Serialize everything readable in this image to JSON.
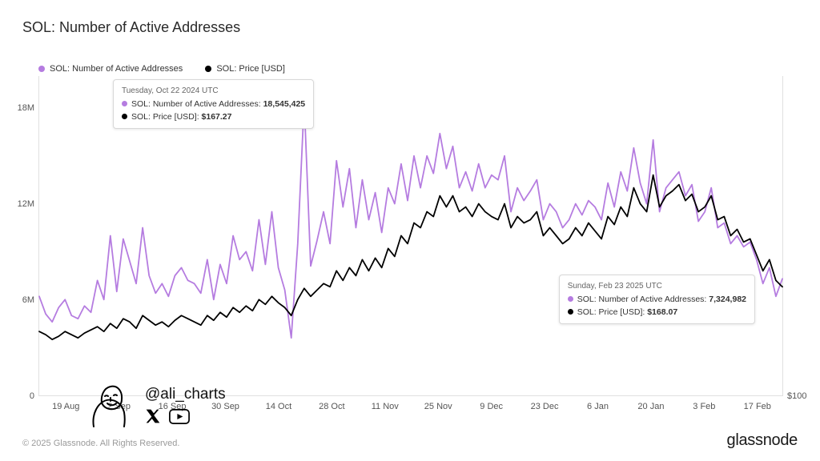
{
  "title": "SOL: Number of Active Addresses",
  "legend": {
    "series1": {
      "label": "SOL: Number of Active Addresses",
      "color": "#b57ce0"
    },
    "series2": {
      "label": "SOL: Price [USD]",
      "color": "#000000"
    }
  },
  "chart": {
    "type": "line",
    "background_color": "#ffffff",
    "border_color": "#e0e0e0",
    "y_left": {
      "min": 0,
      "max": 20000000,
      "ticks": [
        0,
        6000000,
        12000000,
        18000000
      ],
      "tick_labels": [
        "0",
        "6M",
        "12M",
        "18M"
      ]
    },
    "y_right": {
      "min": 100,
      "max": 300,
      "ticks": [
        100
      ],
      "tick_labels": [
        "$100"
      ]
    },
    "x_ticks": [
      "19 Aug",
      "2 Sep",
      "16 Sep",
      "30 Sep",
      "14 Oct",
      "28 Oct",
      "11 Nov",
      "25 Nov",
      "9 Dec",
      "23 Dec",
      "6 Jan",
      "20 Jan",
      "3 Feb",
      "17 Feb"
    ],
    "line_width": 1.8,
    "addresses_color": "#b57ce0",
    "price_color": "#000000",
    "addresses": [
      6.2,
      5.1,
      4.6,
      5.5,
      6.0,
      5.0,
      4.8,
      5.6,
      5.2,
      7.2,
      6.0,
      10.0,
      6.5,
      9.8,
      8.4,
      7.0,
      10.5,
      7.5,
      6.4,
      7.0,
      6.2,
      7.5,
      8.0,
      7.2,
      7.0,
      6.4,
      8.5,
      6.0,
      8.2,
      7.0,
      10.0,
      8.5,
      9.0,
      7.8,
      11.0,
      8.2,
      11.5,
      8.0,
      6.6,
      3.6,
      9.5,
      18.4,
      8.1,
      9.7,
      11.5,
      9.5,
      14.7,
      11.8,
      14.2,
      10.5,
      13.5,
      11.0,
      12.7,
      10.2,
      13.0,
      12.0,
      14.5,
      12.2,
      15.0,
      13.0,
      15.0,
      13.9,
      16.4,
      14.2,
      15.6,
      13.0,
      14.0,
      12.8,
      14.5,
      13.0,
      13.8,
      13.5,
      15.0,
      11.5,
      13.0,
      12.2,
      12.8,
      13.5,
      11.0,
      12.0,
      11.5,
      10.5,
      11.0,
      12.0,
      11.3,
      12.2,
      11.8,
      11.0,
      13.3,
      11.8,
      14.0,
      12.8,
      15.5,
      13.3,
      12.0,
      16.0,
      11.5,
      13.0,
      13.5,
      14.0,
      12.5,
      13.2,
      10.9,
      11.5,
      13.0,
      10.5,
      10.8,
      9.5,
      10.0,
      9.3,
      9.6,
      8.5,
      7.0,
      8.0,
      6.2,
      7.3
    ],
    "price_usd": [
      140,
      138,
      135,
      137,
      140,
      138,
      136,
      139,
      141,
      143,
      140,
      145,
      142,
      148,
      146,
      142,
      150,
      147,
      144,
      146,
      143,
      147,
      150,
      148,
      146,
      144,
      150,
      147,
      152,
      149,
      155,
      152,
      156,
      153,
      160,
      157,
      162,
      158,
      155,
      150,
      160,
      167,
      162,
      166,
      170,
      168,
      178,
      172,
      180,
      175,
      185,
      178,
      186,
      180,
      192,
      187,
      200,
      195,
      208,
      205,
      215,
      212,
      225,
      218,
      225,
      215,
      218,
      212,
      220,
      215,
      212,
      210,
      220,
      205,
      212,
      208,
      210,
      215,
      200,
      205,
      200,
      195,
      198,
      205,
      200,
      208,
      203,
      198,
      212,
      207,
      218,
      212,
      230,
      220,
      215,
      238,
      218,
      225,
      228,
      232,
      222,
      226,
      215,
      218,
      225,
      210,
      212,
      200,
      204,
      196,
      198,
      188,
      178,
      185,
      172,
      168
    ],
    "n_points": 116
  },
  "tooltip1": {
    "date": "Tuesday, Oct 22 2024 UTC",
    "rows": [
      {
        "color": "#b57ce0",
        "label": "SOL: Number of Active Addresses:",
        "value": "18,545,425"
      },
      {
        "color": "#000000",
        "label": "SOL: Price [USD]:",
        "value": "$167.27"
      }
    ]
  },
  "tooltip2": {
    "date": "Sunday, Feb 23 2025 UTC",
    "rows": [
      {
        "color": "#b57ce0",
        "label": "SOL: Number of Active Addresses:",
        "value": "7,324,982"
      },
      {
        "color": "#000000",
        "label": "SOL: Price [USD]:",
        "value": "$168.07"
      }
    ]
  },
  "watermark": {
    "handle": "@ali_charts"
  },
  "footer": "© 2025 Glassnode. All Rights Reserved.",
  "brand": "glassnode"
}
